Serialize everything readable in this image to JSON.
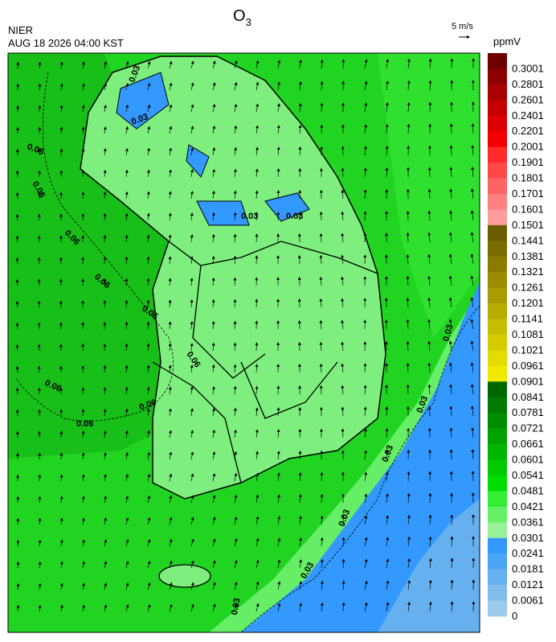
{
  "header": {
    "source": "NIER",
    "timestamp": "AUG 18 2026 04:00 KST",
    "title": "O",
    "title_subscript": "3"
  },
  "wind_scale": "5 m/s",
  "legend": {
    "unit": "ppmV",
    "items": [
      {
        "label": "0.3001",
        "color": "#700000"
      },
      {
        "label": "0.2801",
        "color": "#8c0000"
      },
      {
        "label": "0.2601",
        "color": "#a80000"
      },
      {
        "label": "0.2401",
        "color": "#c40000"
      },
      {
        "label": "0.2201",
        "color": "#dc0000"
      },
      {
        "label": "0.2001",
        "color": "#f50000"
      },
      {
        "label": "0.1901",
        "color": "#ff2a2a"
      },
      {
        "label": "0.1801",
        "color": "#ff4848"
      },
      {
        "label": "0.1701",
        "color": "#ff6464"
      },
      {
        "label": "0.1601",
        "color": "#ff8080"
      },
      {
        "label": "0.1501",
        "color": "#ff9c9c"
      },
      {
        "label": "0.1441",
        "color": "#6b5c00"
      },
      {
        "label": "0.1381",
        "color": "#7a6c00"
      },
      {
        "label": "0.1321",
        "color": "#8a7c00"
      },
      {
        "label": "0.1261",
        "color": "#9a8c00"
      },
      {
        "label": "0.1201",
        "color": "#a89c00"
      },
      {
        "label": "0.1141",
        "color": "#b8ac00"
      },
      {
        "label": "0.1081",
        "color": "#c6bc00"
      },
      {
        "label": "0.1021",
        "color": "#d4cc00"
      },
      {
        "label": "0.0961",
        "color": "#e2dc00"
      },
      {
        "label": "0.0901",
        "color": "#f0ea00"
      },
      {
        "label": "0.0841",
        "color": "#006600"
      },
      {
        "label": "0.0781",
        "color": "#007a00"
      },
      {
        "label": "0.0721",
        "color": "#008e00"
      },
      {
        "label": "0.0661",
        "color": "#00a200"
      },
      {
        "label": "0.0601",
        "color": "#00b600"
      },
      {
        "label": "0.0541",
        "color": "#00ca00"
      },
      {
        "label": "0.0481",
        "color": "#00dd00"
      },
      {
        "label": "0.0421",
        "color": "#33ee33"
      },
      {
        "label": "0.0361",
        "color": "#66f066"
      },
      {
        "label": "0.0301",
        "color": "#99f099"
      },
      {
        "label": "0.0241",
        "color": "#3399ff"
      },
      {
        "label": "0.0181",
        "color": "#4aa5f5"
      },
      {
        "label": "0.0121",
        "color": "#66b0f0"
      },
      {
        "label": "0.0061",
        "color": "#80bcec"
      },
      {
        "label": "0",
        "color": "#9ccbea"
      }
    ]
  },
  "contour_labels": [
    "0.06",
    "0.06",
    "0.06",
    "0.06",
    "0.06",
    "0.06",
    "0.06",
    "0.06",
    "0.06",
    "0.03",
    "0.03",
    "0.03",
    "0.03",
    "0.03",
    "0.03",
    "0.03",
    "0.03",
    "0.03",
    "0.03"
  ]
}
